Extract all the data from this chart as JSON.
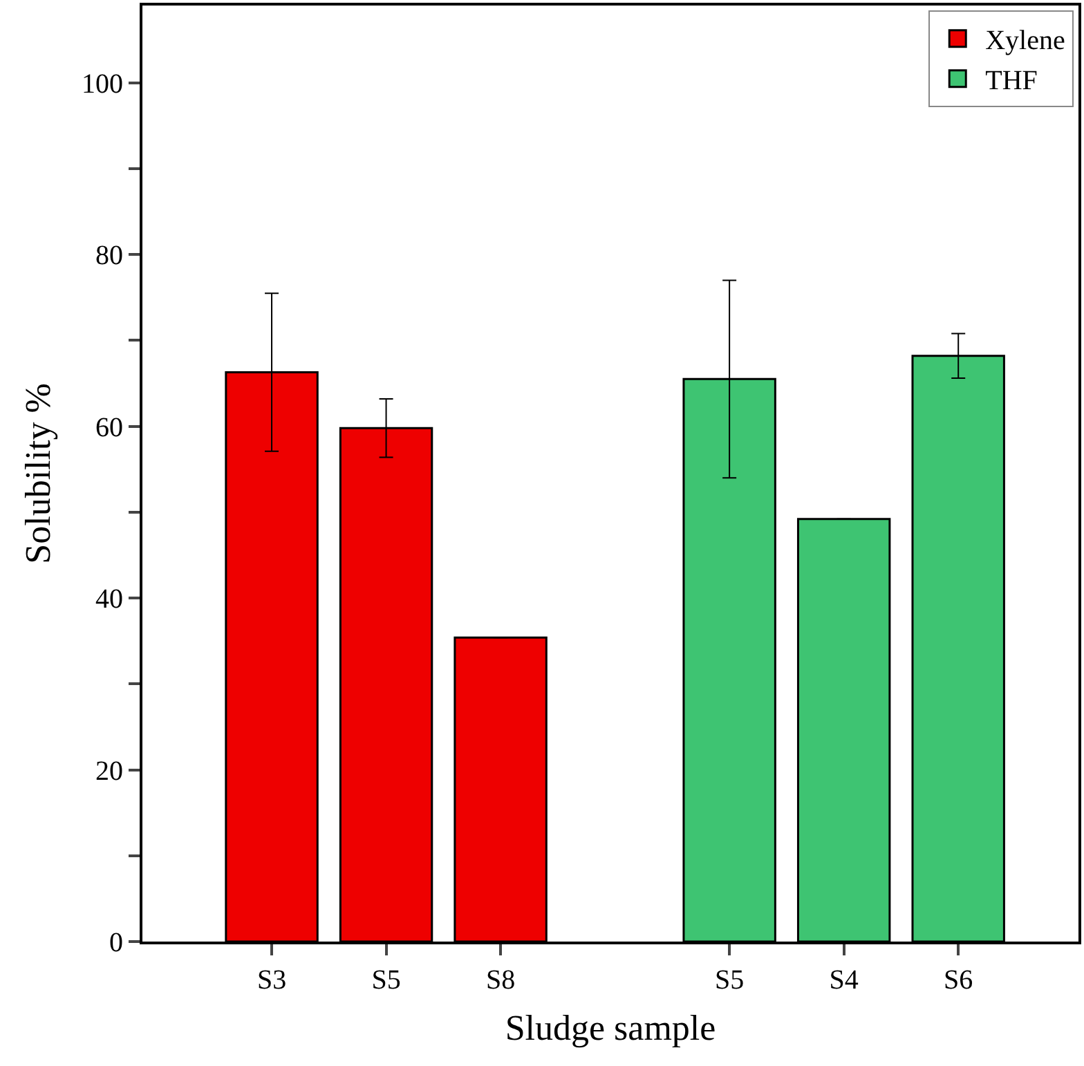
{
  "chart_data": {
    "type": "bar",
    "xlabel": "Sludge sample",
    "ylabel": "Solubility %",
    "categories": [
      "S3",
      "S5",
      "S8",
      null,
      "S5",
      "S4",
      "S6"
    ],
    "series": [
      {
        "name": "Xylene",
        "color": "#ee0000",
        "values": [
          66.3,
          59.8,
          35.4,
          null,
          null,
          null,
          null
        ],
        "errors": [
          9.2,
          3.4,
          null,
          null,
          null,
          null,
          null
        ]
      },
      {
        "name": "THF",
        "color": "#3ec472",
        "values": [
          null,
          null,
          null,
          null,
          65.5,
          49.2,
          68.2
        ],
        "errors": [
          null,
          null,
          null,
          null,
          11.5,
          null,
          2.6
        ]
      }
    ],
    "ylim": [
      0,
      109
    ],
    "yticks": [
      0,
      {
        "value": 10,
        "label": null
      },
      20,
      {
        "value": 30,
        "label": null
      },
      40,
      {
        "value": 50,
        "label": null
      },
      60,
      {
        "value": 70,
        "label": null
      },
      80,
      {
        "value": 90,
        "label": null
      },
      100
    ],
    "legend": "top right"
  }
}
